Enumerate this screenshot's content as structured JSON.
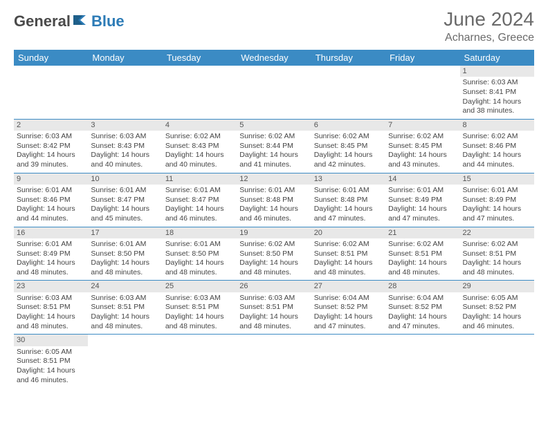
{
  "brand": {
    "part1": "General",
    "part2": "Blue"
  },
  "title": "June 2024",
  "location": "Acharnes, Greece",
  "colors": {
    "header_bg": "#3b8bc4",
    "header_text": "#ffffff",
    "daynum_bg": "#e8e8e8",
    "cell_border": "#3b8bc4",
    "text": "#444444",
    "title_text": "#6a6a6a",
    "logo_gray": "#4a4a4a",
    "logo_blue": "#2c7bb6"
  },
  "typography": {
    "title_fontsize": 28,
    "location_fontsize": 16,
    "dayheader_fontsize": 13,
    "cell_fontsize": 10.5,
    "logo_fontsize": 22
  },
  "day_headers": [
    "Sunday",
    "Monday",
    "Tuesday",
    "Wednesday",
    "Thursday",
    "Friday",
    "Saturday"
  ],
  "weeks": [
    [
      null,
      null,
      null,
      null,
      null,
      null,
      {
        "n": "1",
        "sr": "6:03 AM",
        "ss": "8:41 PM",
        "dl": "14 hours and 38 minutes."
      }
    ],
    [
      {
        "n": "2",
        "sr": "6:03 AM",
        "ss": "8:42 PM",
        "dl": "14 hours and 39 minutes."
      },
      {
        "n": "3",
        "sr": "6:03 AM",
        "ss": "8:43 PM",
        "dl": "14 hours and 40 minutes."
      },
      {
        "n": "4",
        "sr": "6:02 AM",
        "ss": "8:43 PM",
        "dl": "14 hours and 40 minutes."
      },
      {
        "n": "5",
        "sr": "6:02 AM",
        "ss": "8:44 PM",
        "dl": "14 hours and 41 minutes."
      },
      {
        "n": "6",
        "sr": "6:02 AM",
        "ss": "8:45 PM",
        "dl": "14 hours and 42 minutes."
      },
      {
        "n": "7",
        "sr": "6:02 AM",
        "ss": "8:45 PM",
        "dl": "14 hours and 43 minutes."
      },
      {
        "n": "8",
        "sr": "6:02 AM",
        "ss": "8:46 PM",
        "dl": "14 hours and 44 minutes."
      }
    ],
    [
      {
        "n": "9",
        "sr": "6:01 AM",
        "ss": "8:46 PM",
        "dl": "14 hours and 44 minutes."
      },
      {
        "n": "10",
        "sr": "6:01 AM",
        "ss": "8:47 PM",
        "dl": "14 hours and 45 minutes."
      },
      {
        "n": "11",
        "sr": "6:01 AM",
        "ss": "8:47 PM",
        "dl": "14 hours and 46 minutes."
      },
      {
        "n": "12",
        "sr": "6:01 AM",
        "ss": "8:48 PM",
        "dl": "14 hours and 46 minutes."
      },
      {
        "n": "13",
        "sr": "6:01 AM",
        "ss": "8:48 PM",
        "dl": "14 hours and 47 minutes."
      },
      {
        "n": "14",
        "sr": "6:01 AM",
        "ss": "8:49 PM",
        "dl": "14 hours and 47 minutes."
      },
      {
        "n": "15",
        "sr": "6:01 AM",
        "ss": "8:49 PM",
        "dl": "14 hours and 47 minutes."
      }
    ],
    [
      {
        "n": "16",
        "sr": "6:01 AM",
        "ss": "8:49 PM",
        "dl": "14 hours and 48 minutes."
      },
      {
        "n": "17",
        "sr": "6:01 AM",
        "ss": "8:50 PM",
        "dl": "14 hours and 48 minutes."
      },
      {
        "n": "18",
        "sr": "6:01 AM",
        "ss": "8:50 PM",
        "dl": "14 hours and 48 minutes."
      },
      {
        "n": "19",
        "sr": "6:02 AM",
        "ss": "8:50 PM",
        "dl": "14 hours and 48 minutes."
      },
      {
        "n": "20",
        "sr": "6:02 AM",
        "ss": "8:51 PM",
        "dl": "14 hours and 48 minutes."
      },
      {
        "n": "21",
        "sr": "6:02 AM",
        "ss": "8:51 PM",
        "dl": "14 hours and 48 minutes."
      },
      {
        "n": "22",
        "sr": "6:02 AM",
        "ss": "8:51 PM",
        "dl": "14 hours and 48 minutes."
      }
    ],
    [
      {
        "n": "23",
        "sr": "6:03 AM",
        "ss": "8:51 PM",
        "dl": "14 hours and 48 minutes."
      },
      {
        "n": "24",
        "sr": "6:03 AM",
        "ss": "8:51 PM",
        "dl": "14 hours and 48 minutes."
      },
      {
        "n": "25",
        "sr": "6:03 AM",
        "ss": "8:51 PM",
        "dl": "14 hours and 48 minutes."
      },
      {
        "n": "26",
        "sr": "6:03 AM",
        "ss": "8:51 PM",
        "dl": "14 hours and 48 minutes."
      },
      {
        "n": "27",
        "sr": "6:04 AM",
        "ss": "8:52 PM",
        "dl": "14 hours and 47 minutes."
      },
      {
        "n": "28",
        "sr": "6:04 AM",
        "ss": "8:52 PM",
        "dl": "14 hours and 47 minutes."
      },
      {
        "n": "29",
        "sr": "6:05 AM",
        "ss": "8:52 PM",
        "dl": "14 hours and 46 minutes."
      }
    ],
    [
      {
        "n": "30",
        "sr": "6:05 AM",
        "ss": "8:51 PM",
        "dl": "14 hours and 46 minutes."
      },
      null,
      null,
      null,
      null,
      null,
      null
    ]
  ],
  "labels": {
    "sunrise_prefix": "Sunrise: ",
    "sunset_prefix": "Sunset: ",
    "daylight_prefix": "Daylight: "
  }
}
